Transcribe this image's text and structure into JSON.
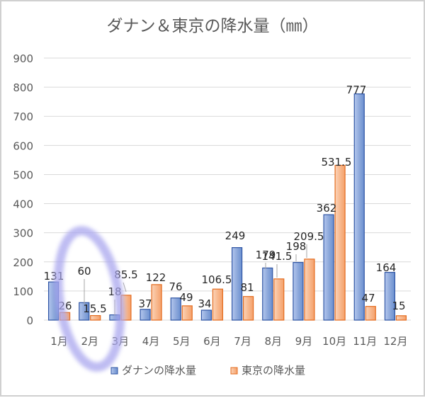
{
  "chart_data": {
    "type": "bar",
    "title": "ダナン＆東京の降水量（㎜）",
    "categories": [
      "1月",
      "2月",
      "3月",
      "4月",
      "5月",
      "6月",
      "7月",
      "8月",
      "9月",
      "10月",
      "11月",
      "12月"
    ],
    "series": [
      {
        "name": "ダナンの降水量",
        "values": [
          131,
          60,
          18,
          37,
          76,
          34,
          249,
          179,
          198,
          362,
          777,
          164
        ],
        "labels": [
          "131",
          "60",
          "18",
          "37",
          "76",
          "34",
          "249",
          "179",
          "198",
          "362",
          "777",
          "164"
        ],
        "color": "#4472c4"
      },
      {
        "name": "東京の降水量",
        "values": [
          26,
          15.5,
          85.5,
          122,
          49,
          106.5,
          81,
          141.5,
          209.5,
          531.5,
          47,
          15
        ],
        "labels": [
          "26",
          "15.5",
          "85.5",
          "122",
          "49",
          "106.5",
          "81",
          "141.5",
          "209.5",
          "531.5",
          "47",
          "15"
        ],
        "color": "#ed7d31"
      }
    ],
    "y_ticks": [
      "0",
      "100",
      "200",
      "300",
      "400",
      "500",
      "600",
      "700",
      "800",
      "900"
    ],
    "ylim": [
      0,
      900
    ],
    "grid": true,
    "legend": "bottom",
    "annotation": "lavender oval highlighting 1月–3月"
  }
}
